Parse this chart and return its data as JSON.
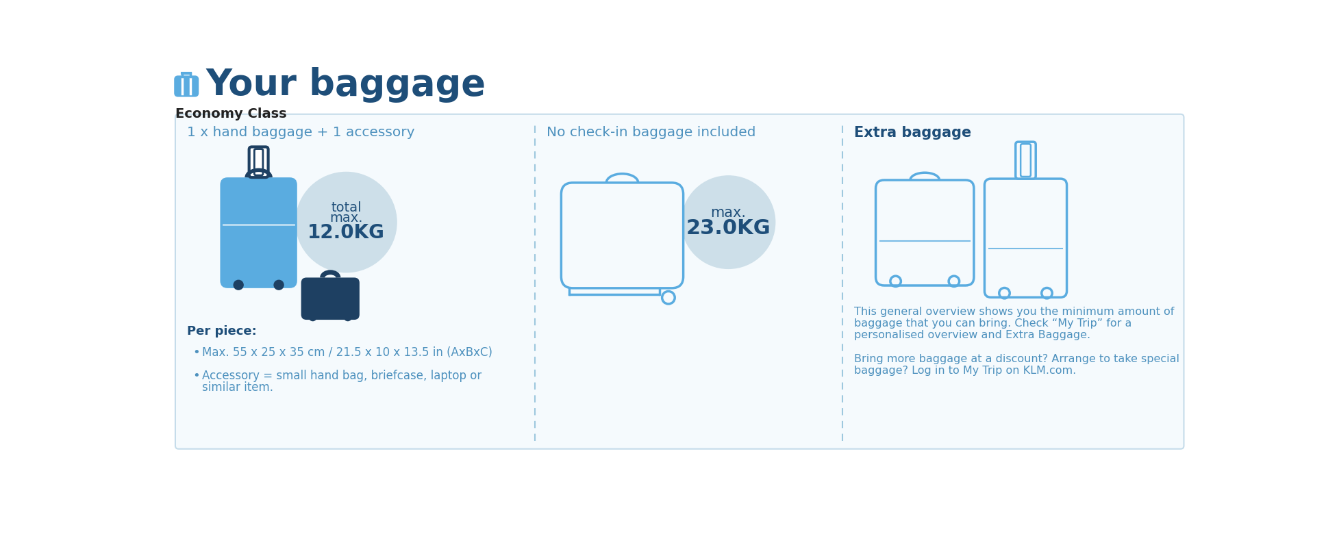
{
  "title": "Your baggage",
  "subtitle": "Economy Class",
  "bg_color": "#ffffff",
  "border_color": "#c5dcea",
  "panel_bg": "#f5fafd",
  "col1_header": "1 x hand baggage + 1 accessory",
  "col2_header": "No check-in baggage included",
  "col3_header": "Extra baggage",
  "col1_circle_text_1": "total",
  "col1_circle_text_2": "max.",
  "col1_circle_text_3": "12.0KG",
  "col2_circle_text_1": "max.",
  "col2_circle_text_2": "23.0KG",
  "per_piece_label": "Per piece:",
  "bullet1": "Max. 55 x 25 x 35 cm / 21.5 x 10 x 13.5 in (AxBxC)",
  "bullet2a": "Accessory = small hand bag, briefcase, laptop or",
  "bullet2b": "similar item.",
  "extra_text1a": "This general overview shows you the minimum amount of",
  "extra_text1b": "baggage that you can bring. Check “My Trip” for a",
  "extra_text1c": "personalised overview and Extra Baggage.",
  "extra_text2a": "Bring more baggage at a discount? Arrange to take special",
  "extra_text2b": "baggage? Log in to My Trip on KLM.com.",
  "title_color": "#1e4e79",
  "header_text_color": "#4d91be",
  "col3_header_color": "#1e4e79",
  "text_dark": "#1e4e79",
  "text_mid": "#4d91be",
  "circle_color": "#cddfe9",
  "suitcase_fill": "#5aace0",
  "bag_fill": "#1e4062",
  "outline_blue": "#5aace0",
  "dashed_color": "#9dc8de",
  "panel_border": "#c5dcea",
  "subtitle_color": "#222222"
}
